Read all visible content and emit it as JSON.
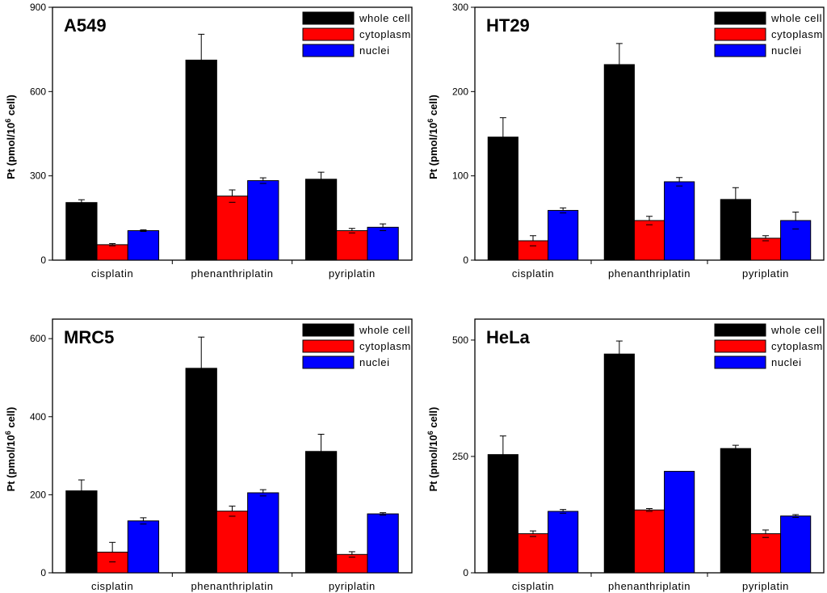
{
  "chart_data": [
    {
      "type": "bar",
      "title": "A549",
      "ylabel_main": "Pt (pmol/10",
      "ylabel_sup": "6",
      "ylabel_tail": " cell)",
      "categories": [
        "cisplatin",
        "phenanthriplatin",
        "pyriplatin"
      ],
      "ylim": [
        0,
        900
      ],
      "yticks": [
        "0",
        "300",
        "600",
        "900"
      ],
      "legend_position": "top-right",
      "series": [
        {
          "name": "whole cell",
          "color": "#000000",
          "values": [
            205,
            712,
            288
          ],
          "errors": [
            10,
            92,
            25
          ]
        },
        {
          "name": "cytoplasm",
          "color": "#ff0000",
          "values": [
            55,
            228,
            105
          ],
          "errors": [
            4,
            22,
            8
          ]
        },
        {
          "name": "nuclei",
          "color": "#0000ff",
          "values": [
            105,
            283,
            117
          ],
          "errors": [
            3,
            10,
            12
          ]
        }
      ]
    },
    {
      "type": "bar",
      "title": "HT29",
      "ylabel_main": "Pt (pmol/10",
      "ylabel_sup": "6",
      "ylabel_tail": " cell)",
      "categories": [
        "cisplatin",
        "phenanthriplatin",
        "pyriplatin"
      ],
      "ylim": [
        0,
        300
      ],
      "yticks": [
        "0",
        "100",
        "200",
        "300"
      ],
      "legend_position": "top-right",
      "series": [
        {
          "name": "whole cell",
          "color": "#000000",
          "values": [
            146,
            232,
            72
          ],
          "errors": [
            23,
            25,
            14
          ]
        },
        {
          "name": "cytoplasm",
          "color": "#ff0000",
          "values": [
            23,
            47,
            26
          ],
          "errors": [
            6,
            5,
            3
          ]
        },
        {
          "name": "nuclei",
          "color": "#0000ff",
          "values": [
            59,
            93,
            47
          ],
          "errors": [
            3,
            5,
            10
          ]
        }
      ]
    },
    {
      "type": "bar",
      "title": "MRC5",
      "ylabel_main": "Pt (pmol/10",
      "ylabel_sup": "6",
      "ylabel_tail": " cell)",
      "categories": [
        "cisplatin",
        "phenanthriplatin",
        "pyriplatin"
      ],
      "ylim": [
        0,
        650
      ],
      "yticks": [
        "0",
        "200",
        "400",
        "600"
      ],
      "legend_position": "top-right",
      "series": [
        {
          "name": "whole cell",
          "color": "#000000",
          "values": [
            210,
            524,
            311
          ],
          "errors": [
            28,
            80,
            44
          ]
        },
        {
          "name": "cytoplasm",
          "color": "#ff0000",
          "values": [
            53,
            158,
            47
          ],
          "errors": [
            25,
            13,
            7
          ]
        },
        {
          "name": "nuclei",
          "color": "#0000ff",
          "values": [
            133,
            205,
            151
          ],
          "errors": [
            8,
            8,
            3
          ]
        }
      ]
    },
    {
      "type": "bar",
      "title": "HeLa",
      "ylabel_main": "Pt (pmol/10",
      "ylabel_sup": "6",
      "ylabel_tail": " cell)",
      "categories": [
        "cisplatin",
        "phenanthriplatin",
        "pyriplatin"
      ],
      "ylim": [
        0,
        545
      ],
      "yticks": [
        "0",
        "250",
        "500"
      ],
      "legend_position": "top-right",
      "series": [
        {
          "name": "whole cell",
          "color": "#000000",
          "values": [
            254,
            470,
            267
          ],
          "errors": [
            40,
            28,
            7
          ]
        },
        {
          "name": "cytoplasm",
          "color": "#ff0000",
          "values": [
            84,
            135,
            84
          ],
          "errors": [
            6,
            3,
            8
          ]
        },
        {
          "name": "nuclei",
          "color": "#0000ff",
          "values": [
            132,
            218,
            122
          ],
          "errors": [
            4,
            0,
            3
          ]
        }
      ]
    }
  ]
}
